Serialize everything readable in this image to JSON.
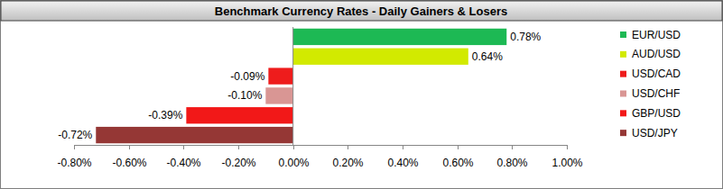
{
  "chart_data": {
    "type": "bar",
    "orientation": "horizontal",
    "title": "Benchmark Currency Rates - Daily Gainers & Losers",
    "categories": [
      "EUR/USD",
      "AUD/USD",
      "USD/CAD",
      "USD/CHF",
      "GBP/USD",
      "USD/JPY"
    ],
    "values": [
      0.78,
      0.64,
      -0.09,
      -0.1,
      -0.39,
      -0.72
    ],
    "value_labels": [
      "0.78%",
      "0.64%",
      "-0.09%",
      "-0.10%",
      "-0.39%",
      "-0.72%"
    ],
    "colors": [
      "#1db954",
      "#d2ea00",
      "#ee1c1c",
      "#d99694",
      "#f21818",
      "#953735"
    ],
    "xlim": [
      -0.8,
      1.0
    ],
    "xticks": [
      {
        "value": -0.8,
        "label": "-0.80%"
      },
      {
        "value": -0.6,
        "label": "-0.60%"
      },
      {
        "value": -0.4,
        "label": "-0.40%"
      },
      {
        "value": -0.2,
        "label": "-0.20%"
      },
      {
        "value": 0,
        "label": "0.00%"
      },
      {
        "value": 0.2,
        "label": "0.20%"
      },
      {
        "value": 0.4,
        "label": "0.40%"
      },
      {
        "value": 0.6,
        "label": "0.60%"
      },
      {
        "value": 0.8,
        "label": "0.80%"
      },
      {
        "value": 1.0,
        "label": "1.00%"
      }
    ],
    "grid": false,
    "data_labels": true,
    "legend": "right"
  }
}
